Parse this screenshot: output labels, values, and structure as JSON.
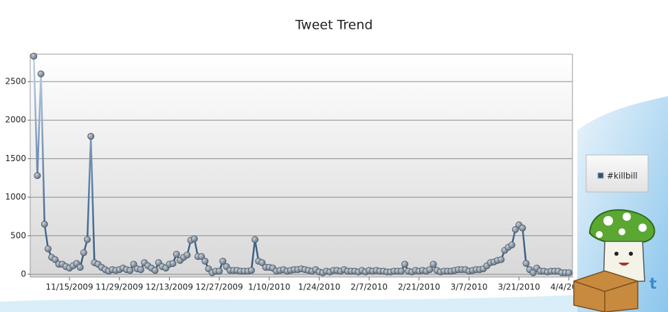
{
  "chart_data": {
    "type": "line",
    "title": "Tweet Trend",
    "x": [
      "2009-11-05",
      "2009-11-06",
      "2009-11-07",
      "2009-11-08",
      "2009-11-09",
      "2009-11-10",
      "2009-11-11",
      "2009-11-12",
      "2009-11-13",
      "2009-11-14",
      "2009-11-15",
      "2009-11-16",
      "2009-11-17",
      "2009-11-18",
      "2009-11-19",
      "2009-11-20",
      "2009-11-21",
      "2009-11-22",
      "2009-11-23",
      "2009-11-24",
      "2009-11-25",
      "2009-11-26",
      "2009-11-27",
      "2009-11-28",
      "2009-11-29",
      "2009-11-30",
      "2009-12-01",
      "2009-12-02",
      "2009-12-03",
      "2009-12-04",
      "2009-12-05",
      "2009-12-06",
      "2009-12-07",
      "2009-12-08",
      "2009-12-09",
      "2009-12-10",
      "2009-12-11",
      "2009-12-12",
      "2009-12-13",
      "2009-12-14",
      "2009-12-15",
      "2009-12-16",
      "2009-12-17",
      "2009-12-18",
      "2009-12-19",
      "2009-12-20",
      "2009-12-21",
      "2009-12-22",
      "2009-12-23",
      "2009-12-24",
      "2009-12-25",
      "2009-12-26",
      "2009-12-27",
      "2009-12-28",
      "2009-12-29",
      "2009-12-30",
      "2009-12-31",
      "2010-01-01",
      "2010-01-02",
      "2010-01-03",
      "2010-01-04",
      "2010-01-05",
      "2010-01-06",
      "2010-01-07",
      "2010-01-08",
      "2010-01-09",
      "2010-01-10",
      "2010-01-11",
      "2010-01-12",
      "2010-01-13",
      "2010-01-14",
      "2010-01-15",
      "2010-01-16",
      "2010-01-17",
      "2010-01-18",
      "2010-01-19",
      "2010-01-20",
      "2010-01-21",
      "2010-01-22",
      "2010-01-23",
      "2010-01-24",
      "2010-01-25",
      "2010-01-26",
      "2010-01-27",
      "2010-01-28",
      "2010-01-29",
      "2010-01-30",
      "2010-01-31",
      "2010-02-01",
      "2010-02-02",
      "2010-02-03",
      "2010-02-04",
      "2010-02-05",
      "2010-02-06",
      "2010-02-07",
      "2010-02-08",
      "2010-02-09",
      "2010-02-10",
      "2010-02-11",
      "2010-02-12",
      "2010-02-13",
      "2010-02-14",
      "2010-02-15",
      "2010-02-16",
      "2010-02-17",
      "2010-02-18",
      "2010-02-19",
      "2010-02-20",
      "2010-02-21",
      "2010-02-22",
      "2010-02-23",
      "2010-02-24",
      "2010-02-25",
      "2010-02-26",
      "2010-02-27",
      "2010-02-28",
      "2010-03-01",
      "2010-03-02",
      "2010-03-03",
      "2010-03-04",
      "2010-03-05",
      "2010-03-06",
      "2010-03-07",
      "2010-03-08",
      "2010-03-09",
      "2010-03-10",
      "2010-03-11",
      "2010-03-12",
      "2010-03-13",
      "2010-03-14",
      "2010-03-15",
      "2010-03-16",
      "2010-03-17",
      "2010-03-18",
      "2010-03-19",
      "2010-03-20",
      "2010-03-21",
      "2010-03-22",
      "2010-03-23",
      "2010-03-24",
      "2010-03-25",
      "2010-03-26",
      "2010-03-27",
      "2010-03-28",
      "2010-03-29",
      "2010-03-30",
      "2010-03-31",
      "2010-04-01",
      "2010-04-02",
      "2010-04-03",
      "2010-04-04"
    ],
    "series": [
      {
        "name": "#killbill",
        "color": "#2f5478",
        "values": [
          2830,
          1280,
          2600,
          650,
          330,
          220,
          190,
          130,
          130,
          100,
          80,
          110,
          140,
          90,
          280,
          450,
          1790,
          150,
          130,
          90,
          60,
          40,
          60,
          50,
          60,
          80,
          60,
          50,
          130,
          70,
          60,
          150,
          110,
          80,
          50,
          150,
          100,
          80,
          130,
          140,
          260,
          180,
          220,
          250,
          440,
          460,
          230,
          230,
          170,
          70,
          20,
          40,
          40,
          170,
          100,
          50,
          50,
          50,
          40,
          40,
          40,
          50,
          450,
          170,
          150,
          90,
          90,
          80,
          40,
          50,
          60,
          40,
          50,
          60,
          60,
          70,
          60,
          50,
          40,
          60,
          30,
          20,
          40,
          30,
          50,
          50,
          40,
          60,
          40,
          40,
          40,
          30,
          50,
          30,
          50,
          40,
          50,
          40,
          40,
          30,
          30,
          40,
          40,
          40,
          130,
          40,
          30,
          50,
          40,
          50,
          40,
          60,
          130,
          50,
          30,
          40,
          40,
          40,
          50,
          60,
          60,
          60,
          40,
          50,
          60,
          60,
          70,
          110,
          150,
          160,
          180,
          190,
          310,
          350,
          380,
          580,
          640,
          600,
          140,
          60,
          20,
          80,
          40,
          40,
          30,
          40,
          40,
          40,
          20,
          20,
          20
        ]
      }
    ],
    "xlim": [
      "2009-11-04",
      "2010-04-05"
    ],
    "xticks": [
      {
        "value": "2009-11-15",
        "label": "11/15/2009"
      },
      {
        "value": "2009-11-29",
        "label": "11/29/2009"
      },
      {
        "value": "2009-12-13",
        "label": "12/13/2009"
      },
      {
        "value": "2009-12-27",
        "label": "12/27/2009"
      },
      {
        "value": "2010-01-10",
        "label": "1/10/2010"
      },
      {
        "value": "2010-01-24",
        "label": "1/24/2010"
      },
      {
        "value": "2010-02-07",
        "label": "2/7/2010"
      },
      {
        "value": "2010-02-21",
        "label": "2/21/2010"
      },
      {
        "value": "2010-03-07",
        "label": "3/7/2010"
      },
      {
        "value": "2010-03-21",
        "label": "3/21/2010"
      },
      {
        "value": "2010-04-04",
        "label": "4/4/2010"
      }
    ],
    "ylim": [
      -36,
      2856
    ],
    "yticks": [
      0,
      500,
      1000,
      1500,
      2000,
      2500
    ],
    "grid": true,
    "legend": "right"
  }
}
